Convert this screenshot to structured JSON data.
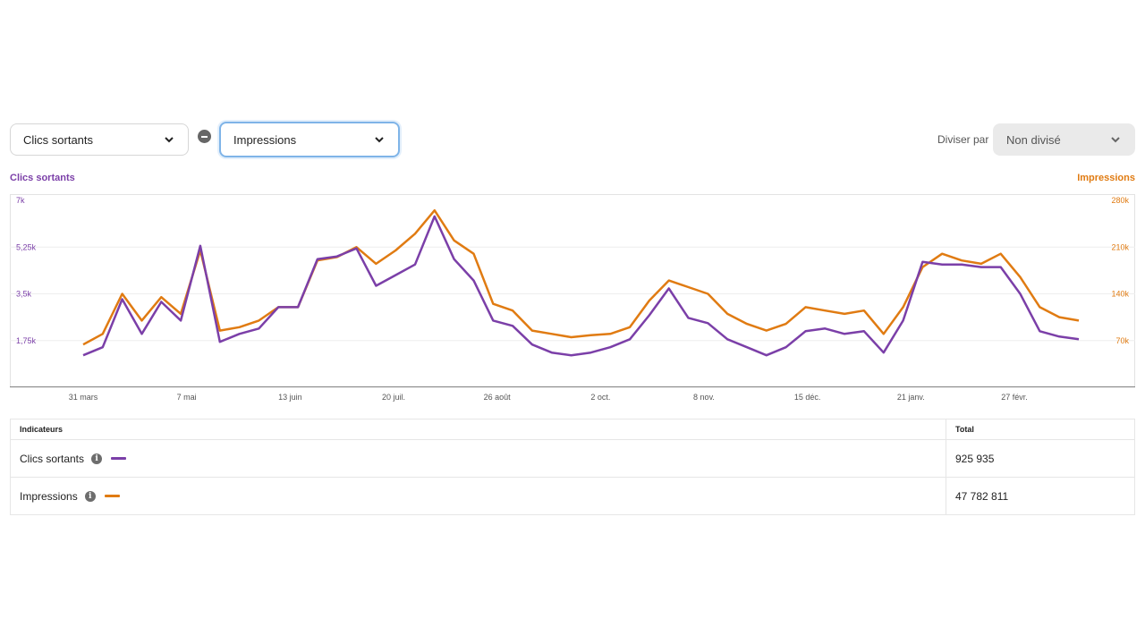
{
  "controls": {
    "metric1": "Clics sortants",
    "metric2": "Impressions",
    "split_label": "Diviser par",
    "split_value": "Non divisé"
  },
  "colors": {
    "clicks": "#7b3fa8",
    "impressions": "#e07b12"
  },
  "chart_data": {
    "type": "line",
    "y_left_label": "Clics sortants",
    "y_right_label": "Impressions",
    "y_left_ticks": [
      "1,75k",
      "3,5k",
      "5,25k",
      "7k"
    ],
    "y_right_ticks": [
      "70k",
      "140k",
      "210k",
      "280k"
    ],
    "y_left_range": [
      0,
      7000
    ],
    "y_right_range": [
      0,
      280000
    ],
    "x_tick_labels": [
      "31 mars",
      "7 mai",
      "13 juin",
      "20 juil.",
      "26 août",
      "2 oct.",
      "8 nov.",
      "15 déc.",
      "21 janv.",
      "27 févr."
    ],
    "x_ticks_week_index": [
      0,
      5.3,
      10.6,
      15.9,
      21.2,
      26.5,
      31.8,
      37.1,
      42.4,
      47.7
    ],
    "x_range_weeks": [
      -1,
      52.5
    ],
    "series": [
      {
        "name": "Clics sortants",
        "axis": "left",
        "week": [
          0,
          1,
          2,
          3,
          4,
          5,
          6,
          7,
          8,
          9,
          10,
          11,
          12,
          13,
          14,
          15,
          16,
          17,
          18,
          19,
          20,
          21,
          22,
          23,
          24,
          25,
          26,
          27,
          28,
          29,
          30,
          31,
          32,
          33,
          34,
          35,
          36,
          37,
          38,
          39,
          40,
          41,
          42,
          43,
          44,
          45,
          46,
          47,
          48,
          49,
          50,
          51
        ],
        "values": [
          1200,
          1500,
          3300,
          2000,
          3200,
          2500,
          5300,
          1700,
          2000,
          2200,
          3000,
          3000,
          4800,
          4900,
          5200,
          3800,
          4200,
          4600,
          6400,
          4800,
          4000,
          2500,
          2300,
          1600,
          1300,
          1200,
          1300,
          1500,
          1800,
          2700,
          3700,
          2600,
          2400,
          1800,
          1500,
          1200,
          1500,
          2100,
          2200,
          2000,
          2100,
          1300,
          2500,
          4700,
          4600,
          4600,
          4500,
          4500,
          3500,
          2100,
          1900,
          1800
        ]
      },
      {
        "name": "Impressions",
        "axis": "right",
        "week": [
          0,
          1,
          2,
          3,
          4,
          5,
          6,
          7,
          8,
          9,
          10,
          11,
          12,
          13,
          14,
          15,
          16,
          17,
          18,
          19,
          20,
          21,
          22,
          23,
          24,
          25,
          26,
          27,
          28,
          29,
          30,
          31,
          32,
          33,
          34,
          35,
          36,
          37,
          38,
          39,
          40,
          41,
          42,
          43,
          44,
          45,
          46,
          47,
          48,
          49,
          50,
          51
        ],
        "values": [
          64000,
          80000,
          140000,
          100000,
          135000,
          110000,
          205000,
          85000,
          90000,
          100000,
          120000,
          120000,
          190000,
          195000,
          210000,
          185000,
          205000,
          230000,
          265000,
          220000,
          200000,
          125000,
          115000,
          85000,
          80000,
          75000,
          78000,
          80000,
          90000,
          130000,
          160000,
          150000,
          140000,
          110000,
          95000,
          85000,
          95000,
          120000,
          115000,
          110000,
          115000,
          80000,
          120000,
          180000,
          200000,
          190000,
          185000,
          200000,
          165000,
          120000,
          105000,
          100000
        ]
      }
    ]
  },
  "table": {
    "headers": {
      "indicator": "Indicateurs",
      "total": "Total"
    },
    "rows": [
      {
        "label": "Clics sortants",
        "total": "925 935"
      },
      {
        "label": "Impressions",
        "total": "47 782 811"
      }
    ]
  }
}
